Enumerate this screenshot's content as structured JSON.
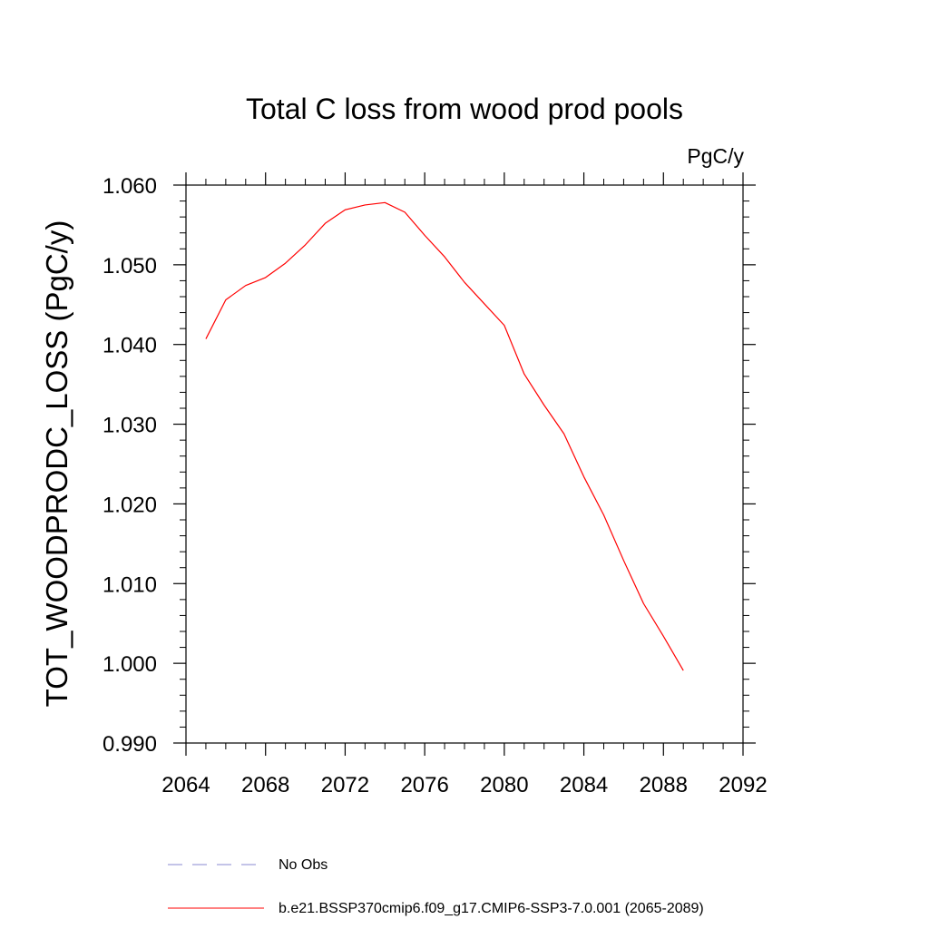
{
  "chart_data": {
    "type": "line",
    "title": "Total C loss from wood prod pools",
    "units": "PgC/y",
    "ylabel": "TOT_WOODPRODC_LOSS  (PgC/y)",
    "xlabel": "",
    "xlim": [
      2064,
      2092
    ],
    "ylim": [
      0.99,
      1.06
    ],
    "xticks": [
      2064,
      2068,
      2072,
      2076,
      2080,
      2084,
      2088,
      2092
    ],
    "xtick_labels": [
      "2064",
      "2068",
      "2072",
      "2076",
      "2080",
      "2084",
      "2088",
      "2092"
    ],
    "yticks": [
      0.99,
      1.0,
      1.01,
      1.02,
      1.03,
      1.04,
      1.05,
      1.06
    ],
    "ytick_labels": [
      "0.990",
      "1.000",
      "1.010",
      "1.020",
      "1.030",
      "1.040",
      "1.050",
      "1.060"
    ],
    "grid": false,
    "legend_position": "bottom",
    "series": [
      {
        "name": "b.e21.BSSP370cmip6.f09_g17.CMIP6-SSP3-7.0.001 (2065-2089)",
        "color": "#ff0000",
        "style": "solid",
        "x": [
          2065,
          2066,
          2067,
          2068,
          2069,
          2070,
          2071,
          2072,
          2073,
          2074,
          2075,
          2076,
          2077,
          2078,
          2079,
          2080,
          2081,
          2082,
          2083,
          2084,
          2085,
          2086,
          2087,
          2088,
          2089
        ],
        "y": [
          1.0407,
          1.0456,
          1.0474,
          1.0484,
          1.0502,
          1.0525,
          1.0552,
          1.0569,
          1.0575,
          1.0578,
          1.0566,
          1.0537,
          1.051,
          1.0478,
          1.0451,
          1.0424,
          1.0363,
          1.0324,
          1.0288,
          1.0234,
          1.0186,
          1.0129,
          1.0075,
          1.0034,
          0.9991
        ]
      }
    ],
    "legend": [
      {
        "label": "No Obs",
        "color": "#8a8ad0",
        "style": "dashed"
      },
      {
        "label": "b.e21.BSSP370cmip6.f09_g17.CMIP6-SSP3-7.0.001 (2065-2089)",
        "color": "#ff0000",
        "style": "solid"
      }
    ]
  }
}
